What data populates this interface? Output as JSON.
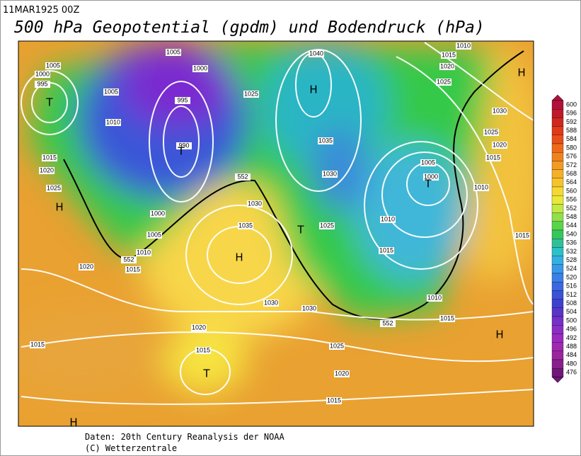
{
  "header": {
    "date": "11MAR1925 00Z",
    "title": "500 hPa Geopotential (gpdm) und Bodendruck (hPa)"
  },
  "colorbar": {
    "labels": [
      600,
      596,
      592,
      588,
      584,
      580,
      576,
      572,
      568,
      564,
      560,
      556,
      552,
      548,
      544,
      540,
      536,
      532,
      528,
      524,
      520,
      516,
      512,
      508,
      504,
      500,
      496,
      492,
      488,
      484,
      480,
      476
    ]
  },
  "map": {
    "isobar_labels": [
      1005,
      1005,
      1000,
      995,
      1005,
      1000,
      995,
      1010,
      990,
      1025,
      1040,
      1015,
      1010,
      1020,
      1025,
      1030,
      1025,
      1020,
      1015,
      1035,
      1030,
      1005,
      1000,
      1010,
      1015,
      1020,
      1025,
      552,
      1030,
      1035,
      1000,
      1005,
      1010,
      552,
      1015,
      1020,
      1025,
      1010,
      1015,
      1015,
      1030,
      1030,
      1010,
      1015,
      552,
      1020,
      1015,
      1015,
      1025,
      1020,
      1015
    ],
    "centers": [
      "T",
      "H",
      "H",
      "T",
      "T",
      "H",
      "T",
      "H",
      "H",
      "T",
      "H"
    ]
  },
  "footer": {
    "source": "Daten: 20th Century Reanalysis der NOAA",
    "copyright": "(C) Wetterzentrale"
  }
}
